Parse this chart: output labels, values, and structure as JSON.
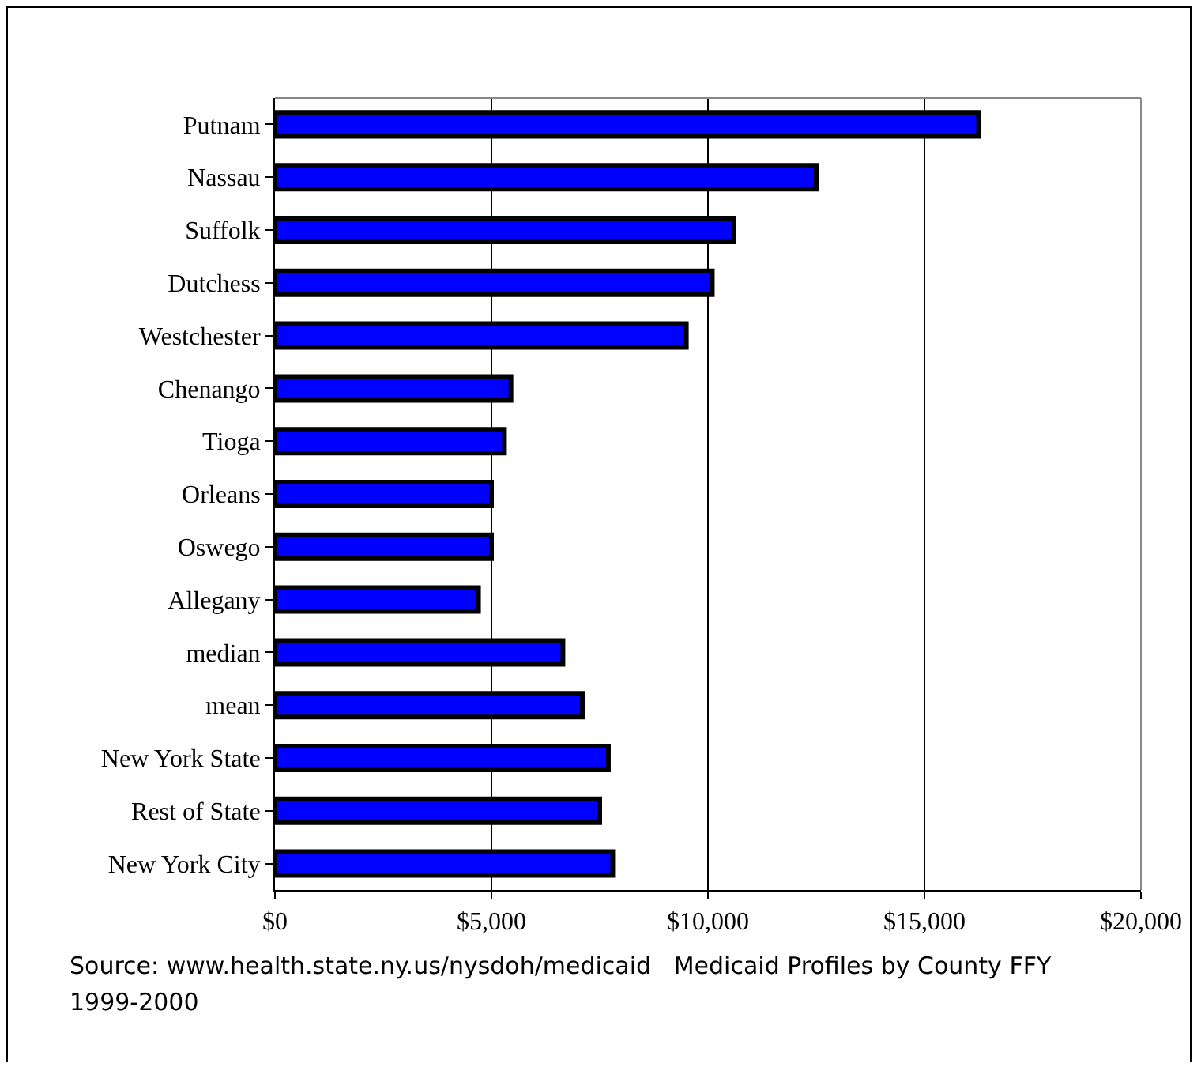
{
  "chart_data": {
    "type": "bar",
    "orientation": "horizontal",
    "categories": [
      "Putnam",
      "Nassau",
      "Suffolk",
      "Dutchess",
      "Westchester",
      "Chenango",
      "Tioga",
      "Orleans",
      "Oswego",
      "Allegany",
      "median",
      "mean",
      "New York State",
      "Rest of State",
      "New York City"
    ],
    "values": [
      16250,
      12500,
      10600,
      10100,
      9500,
      5450,
      5300,
      5000,
      5000,
      4700,
      6650,
      7100,
      7700,
      7500,
      7800
    ],
    "color": "#0000ff",
    "xlim": [
      0,
      20000
    ],
    "xticks": [
      {
        "value": 0,
        "label": "$0"
      },
      {
        "value": 5000,
        "label": "$5,000"
      },
      {
        "value": 10000,
        "label": "$10,000"
      },
      {
        "value": 15000,
        "label": "$15,000"
      },
      {
        "value": 20000,
        "label": "$20,000"
      }
    ],
    "grid": "x",
    "annotations": [
      "Source: www.health.state.ny.us/nysdoh/medicaid   Medicaid Profiles by County FFY 1999-2000"
    ]
  }
}
